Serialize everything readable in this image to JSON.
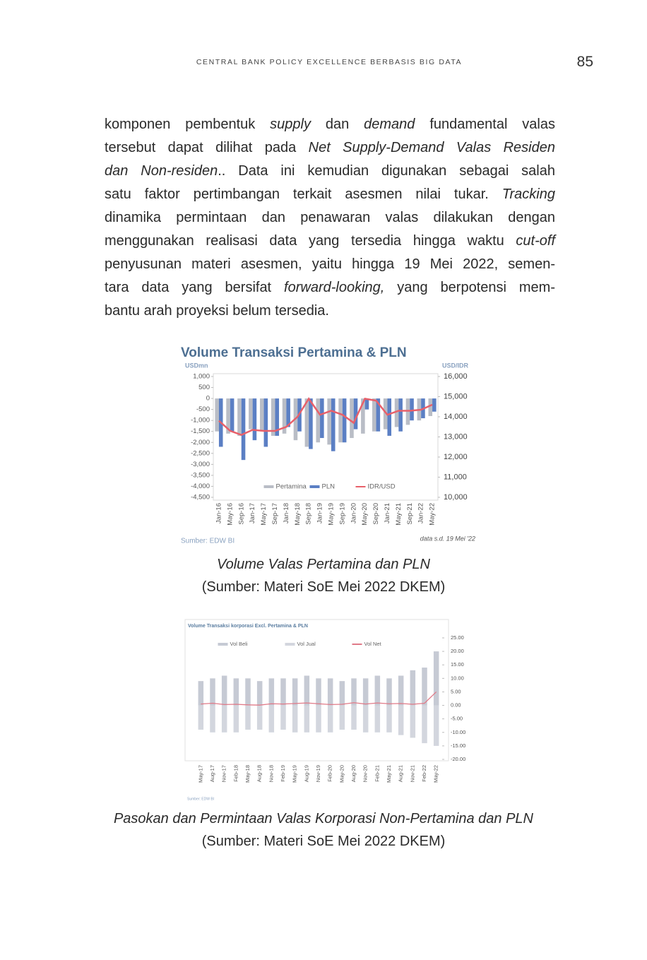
{
  "header": {
    "running_title": "CENTRAL BANK POLICY EXCELLENCE BERBASIS BIG DATA",
    "page_number": "85"
  },
  "paragraph": {
    "lines": [
      [
        {
          "text": "komponen pembentuk "
        },
        {
          "text": "supply",
          "italic": true
        },
        {
          "text": " dan "
        },
        {
          "text": "demand",
          "italic": true
        },
        {
          "text": " fundamental valas"
        }
      ],
      [
        {
          "text": "tersebut dapat dilihat pada "
        },
        {
          "text": "Net Supply-Demand Valas Residen",
          "italic": true
        }
      ],
      [
        {
          "text": "dan Non-residen",
          "italic": true
        },
        {
          "text": ".. Data ini kemudian digunakan sebagai salah"
        }
      ],
      [
        {
          "text": "satu faktor pertimbangan terkait asesmen nilai tukar. "
        },
        {
          "text": "Tracking",
          "italic": true
        }
      ],
      [
        {
          "text": "dinamika permintaan dan penawaran valas dilakukan dengan"
        }
      ],
      [
        {
          "text": "menggunakan realisasi data yang tersedia hingga waktu "
        },
        {
          "text": "cut-off",
          "italic": true
        }
      ],
      [
        {
          "text": "penyusunan materi asesmen, yaitu hingga 19 Mei 2022, semen-"
        }
      ],
      [
        {
          "text": "tara data yang bersifat "
        },
        {
          "text": "forward-looking,",
          "italic": true
        },
        {
          "text": " yang berpotensi mem-"
        }
      ],
      [
        {
          "text": "bantu arah proyeksi belum tersedia."
        }
      ]
    ]
  },
  "chart_data": [
    {
      "type": "combo",
      "title": "Volume Transaksi Pertamina & PLN",
      "y_label": "USDmn",
      "y2_label": "USD/IDR",
      "source": "Sumber: EDW BI",
      "note": "data s.d. 19 Mei '22",
      "bar_mode": "group",
      "y_axis_side": "left",
      "grid": false,
      "categories": [
        "Jan-16",
        "May-16",
        "Sep-16",
        "Jan-17",
        "May-17",
        "Sep-17",
        "Jan-18",
        "May-18",
        "Sep-18",
        "Jan-19",
        "May-19",
        "Sep-19",
        "Jan-20",
        "May-20",
        "Sep-20",
        "Jan-21",
        "May-21",
        "Sep-21",
        "Jan-22",
        "May-22"
      ],
      "series": [
        {
          "name": "Pertamina",
          "kind": "bar",
          "color": "#b9bdc6",
          "values": [
            -1500,
            -1600,
            -1700,
            -1400,
            -1500,
            -1700,
            -1600,
            -1900,
            -2200,
            -2000,
            -2100,
            -2000,
            -1800,
            -1600,
            -1500,
            -1400,
            -1300,
            -1200,
            -1000,
            -800
          ]
        },
        {
          "name": "PLN",
          "kind": "bar",
          "color": "#5b7fc4",
          "values": [
            -2200,
            -1500,
            -2800,
            -1900,
            -2200,
            -1700,
            -1300,
            -1500,
            -2300,
            -1800,
            -2400,
            -2000,
            -1400,
            -500,
            -1500,
            -1700,
            -1500,
            -1000,
            -900,
            -600
          ]
        },
        {
          "name": "IDR/USD",
          "kind": "line",
          "axis": "y2",
          "color": "#e8606a",
          "values": [
            13800,
            13300,
            13100,
            13350,
            13300,
            13300,
            13500,
            14000,
            14900,
            14100,
            14300,
            14100,
            13700,
            14900,
            14800,
            14100,
            14300,
            14300,
            14350,
            14600
          ]
        }
      ],
      "ylim": [
        -4500,
        1000
      ],
      "yticks": [
        {
          "value": 1000,
          "label": "1,000"
        },
        500,
        0,
        -500,
        {
          "value": -1000,
          "label": "-1,000"
        },
        {
          "value": -1500,
          "label": "-1,500"
        },
        {
          "value": -2000,
          "label": "-2,000"
        },
        {
          "value": -2500,
          "label": "-2,500"
        },
        {
          "value": -3000,
          "label": "-3,000"
        },
        {
          "value": -3500,
          "label": "-3,500"
        },
        {
          "value": -4000,
          "label": "-4,000"
        },
        {
          "value": -4500,
          "label": "-4,500"
        }
      ],
      "y2lim": [
        10000,
        16000
      ],
      "y2ticks": [
        {
          "value": 16000,
          "label": "16,000"
        },
        {
          "value": 15000,
          "label": "15,000"
        },
        {
          "value": 14000,
          "label": "14,000"
        },
        {
          "value": 13000,
          "label": "13,000"
        },
        {
          "value": 12000,
          "label": "12,000"
        },
        {
          "value": 11000,
          "label": "11,000"
        },
        {
          "value": 10000,
          "label": "10,000"
        }
      ]
    },
    {
      "type": "combo",
      "title": "Volume Transaksi korporasi Excl. Pertamina & PLN",
      "source": "Sumber: EDW BI",
      "bar_mode": "overlay",
      "y_axis_side": "right",
      "grid": false,
      "categories": [
        "May-17",
        "Aug-17",
        "Nov-17",
        "Feb-18",
        "May-18",
        "Aug-18",
        "Nov-18",
        "Feb-19",
        "May-19",
        "Aug-19",
        "Nov-19",
        "Feb-20",
        "May-20",
        "Aug-20",
        "Nov-20",
        "Feb-21",
        "May-21",
        "Aug-21",
        "Nov-21",
        "Feb-22",
        "May-22"
      ],
      "series": [
        {
          "name": "Vol Beli",
          "kind": "bar",
          "color": "#c6cad4",
          "values": [
            9,
            10,
            11,
            10,
            10,
            9,
            10,
            10,
            10,
            11,
            10,
            10,
            9,
            10,
            10,
            11,
            10,
            11,
            13,
            14,
            20
          ]
        },
        {
          "name": "Vol Jual",
          "kind": "bar",
          "color": "#d3d6de",
          "values": [
            -9,
            -10,
            -10,
            -10,
            -9,
            -9,
            -10,
            -9,
            -10,
            -10,
            -10,
            -10,
            -9,
            -9,
            -10,
            -10,
            -10,
            -11,
            -12,
            -14,
            -15
          ]
        },
        {
          "name": "Vol Net",
          "kind": "line",
          "color": "#e07a88",
          "values": [
            0.5,
            0.8,
            0.3,
            0.4,
            0.2,
            0.1,
            0.6,
            0.5,
            0.7,
            0.9,
            0.6,
            0.3,
            0.4,
            1.0,
            0.5,
            0.9,
            0.6,
            0.7,
            0.4,
            0.8,
            5
          ]
        }
      ],
      "ylim": [
        -20,
        25
      ],
      "yticks": [
        {
          "value": 25,
          "label": "25.00"
        },
        {
          "value": 20,
          "label": "20.00"
        },
        {
          "value": 15,
          "label": "15.00"
        },
        {
          "value": 10,
          "label": "10.00"
        },
        {
          "value": 5,
          "label": "5.00"
        },
        {
          "value": 0,
          "label": "0.00"
        },
        {
          "value": -5,
          "label": "-5.00"
        },
        {
          "value": -10,
          "label": "-10.00"
        },
        {
          "value": -15,
          "label": "-15.00"
        },
        {
          "value": -20,
          "label": "-20.00"
        }
      ]
    }
  ],
  "captions": [
    {
      "title": "Volume Valas Pertamina dan PLN",
      "source": "(Sumber: Materi SoE Mei 2022 DKEM)"
    },
    {
      "title": "Pasokan dan Permintaan Valas Korporasi Non-Pertamina dan PLN",
      "source": "(Sumber: Materi SoE Mei 2022 DKEM)"
    }
  ]
}
